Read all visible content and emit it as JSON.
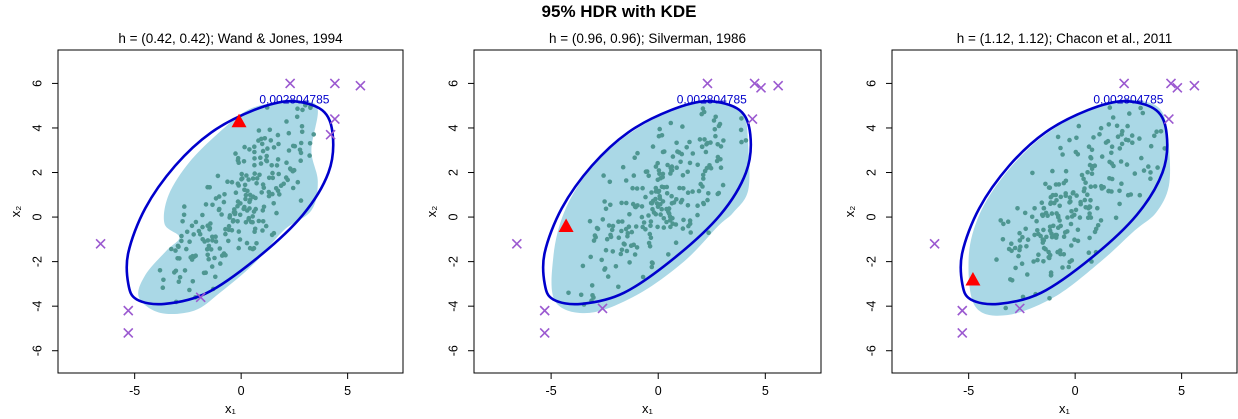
{
  "figure": {
    "title": "95% HDR with KDE"
  },
  "colors": {
    "hdr_fill": "#aad8e6",
    "contour": "#0000cc",
    "points": "#4e9691",
    "outliers": "#9b59d0",
    "mode": "#ff0000",
    "axes": "#000000"
  },
  "chart_data": [
    {
      "type": "scatter",
      "title": "h = (0.42, 0.42); Wand & Jones, 1994",
      "xlabel": "x₁",
      "ylabel": "x₂",
      "xlim": [
        -8.6,
        7.6
      ],
      "ylim": [
        -7.0,
        7.5
      ],
      "xticks": [
        -5,
        0,
        5
      ],
      "yticks": [
        -6,
        -4,
        -2,
        0,
        2,
        4,
        6
      ],
      "contour_label": "0.002804785",
      "mode_point": [
        -0.1,
        4.3
      ],
      "hdr_region": [
        [
          -3.8,
          -4.3
        ],
        [
          -2.2,
          -4.2
        ],
        [
          -1.0,
          -3.4
        ],
        [
          0.6,
          -2.1
        ],
        [
          2.0,
          -0.6
        ],
        [
          3.3,
          0.3
        ],
        [
          3.6,
          1.6
        ],
        [
          3.3,
          3.0
        ],
        [
          3.6,
          4.8
        ],
        [
          3.0,
          5.2
        ],
        [
          1.4,
          5.1
        ],
        [
          0.3,
          4.8
        ],
        [
          -0.8,
          4.0
        ],
        [
          -2.4,
          2.5
        ],
        [
          -3.4,
          1.0
        ],
        [
          -3.6,
          -0.3
        ],
        [
          -2.9,
          -0.9
        ],
        [
          -3.5,
          -1.5
        ],
        [
          -4.5,
          -2.6
        ],
        [
          -4.8,
          -3.6
        ]
      ],
      "hdr_contour": [
        [
          -4.9,
          -3.7
        ],
        [
          -3.6,
          -3.9
        ],
        [
          -1.6,
          -3.4
        ],
        [
          0.8,
          -1.8
        ],
        [
          2.9,
          0.1
        ],
        [
          4.1,
          2.0
        ],
        [
          4.3,
          3.7
        ],
        [
          3.8,
          4.8
        ],
        [
          2.3,
          5.2
        ],
        [
          0.6,
          4.8
        ],
        [
          -1.4,
          3.8
        ],
        [
          -3.1,
          2.3
        ],
        [
          -4.5,
          0.4
        ],
        [
          -5.3,
          -1.6
        ],
        [
          -5.3,
          -3.0
        ]
      ],
      "outliers": [
        [
          -6.6,
          -1.2
        ],
        [
          -5.3,
          -4.2
        ],
        [
          -5.3,
          -5.2
        ],
        [
          -1.9,
          -3.6
        ],
        [
          2.3,
          6.0
        ],
        [
          4.4,
          6.0
        ],
        [
          5.6,
          5.9
        ],
        [
          4.4,
          4.4
        ],
        [
          4.2,
          3.7
        ]
      ]
    },
    {
      "type": "scatter",
      "title": "h = (0.96, 0.96); Silverman, 1986",
      "xlabel": "x₁",
      "ylabel": "x₂",
      "xlim": [
        -8.6,
        7.6
      ],
      "ylim": [
        -7.0,
        7.5
      ],
      "xticks": [
        -5,
        0,
        5
      ],
      "yticks": [
        -6,
        -4,
        -2,
        0,
        2,
        4,
        6
      ],
      "contour_label": "0.002804785",
      "mode_point": [
        -4.3,
        -0.4
      ],
      "hdr_region": [
        [
          -4.8,
          -3.8
        ],
        [
          -3.2,
          -4.3
        ],
        [
          -1.0,
          -3.5
        ],
        [
          1.2,
          -2.0
        ],
        [
          2.8,
          -0.4
        ],
        [
          3.5,
          0.2
        ],
        [
          4.2,
          1.2
        ],
        [
          4.2,
          3.2
        ],
        [
          4.0,
          4.6
        ],
        [
          3.2,
          5.1
        ],
        [
          1.8,
          5.1
        ],
        [
          0.2,
          4.6
        ],
        [
          -1.7,
          3.5
        ],
        [
          -3.3,
          2.0
        ],
        [
          -4.4,
          0.2
        ],
        [
          -4.9,
          -1.8
        ]
      ],
      "hdr_contour": [
        [
          -4.9,
          -3.7
        ],
        [
          -3.6,
          -3.9
        ],
        [
          -1.6,
          -3.4
        ],
        [
          0.8,
          -1.8
        ],
        [
          2.9,
          0.1
        ],
        [
          4.1,
          2.0
        ],
        [
          4.3,
          3.7
        ],
        [
          3.8,
          4.8
        ],
        [
          2.3,
          5.2
        ],
        [
          0.6,
          4.8
        ],
        [
          -1.4,
          3.8
        ],
        [
          -3.1,
          2.3
        ],
        [
          -4.5,
          0.4
        ],
        [
          -5.3,
          -1.6
        ],
        [
          -5.3,
          -3.0
        ]
      ],
      "outliers": [
        [
          -6.6,
          -1.2
        ],
        [
          -5.3,
          -4.2
        ],
        [
          -5.3,
          -5.2
        ],
        [
          -2.6,
          -4.1
        ],
        [
          2.3,
          6.0
        ],
        [
          4.5,
          6.0
        ],
        [
          4.8,
          5.8
        ],
        [
          5.6,
          5.9
        ],
        [
          4.4,
          4.4
        ]
      ]
    },
    {
      "type": "scatter",
      "title": "h = (1.12, 1.12); Chacon et al., 2011",
      "xlabel": "x₁",
      "ylabel": "x₂",
      "xlim": [
        -8.6,
        7.6
      ],
      "ylim": [
        -7.0,
        7.5
      ],
      "xticks": [
        -5,
        0,
        5
      ],
      "yticks": [
        -6,
        -4,
        -2,
        0,
        2,
        4,
        6
      ],
      "contour_label": "0.002804785",
      "mode_point": [
        -4.8,
        -2.8
      ],
      "hdr_region": [
        [
          -4.7,
          -4.0
        ],
        [
          -3.2,
          -4.4
        ],
        [
          -1.0,
          -3.6
        ],
        [
          1.2,
          -2.0
        ],
        [
          2.8,
          -0.6
        ],
        [
          3.8,
          0.2
        ],
        [
          4.4,
          1.4
        ],
        [
          4.4,
          3.2
        ],
        [
          4.1,
          4.7
        ],
        [
          3.2,
          5.2
        ],
        [
          1.7,
          5.2
        ],
        [
          0.1,
          4.6
        ],
        [
          -1.8,
          3.4
        ],
        [
          -3.4,
          1.8
        ],
        [
          -4.5,
          0.1
        ],
        [
          -5.0,
          -1.8
        ]
      ],
      "hdr_contour": [
        [
          -4.9,
          -3.7
        ],
        [
          -3.6,
          -3.9
        ],
        [
          -1.6,
          -3.4
        ],
        [
          0.8,
          -1.8
        ],
        [
          2.9,
          0.1
        ],
        [
          4.1,
          2.0
        ],
        [
          4.3,
          3.7
        ],
        [
          3.8,
          4.8
        ],
        [
          2.3,
          5.2
        ],
        [
          0.6,
          4.8
        ],
        [
          -1.4,
          3.8
        ],
        [
          -3.1,
          2.3
        ],
        [
          -4.5,
          0.4
        ],
        [
          -5.3,
          -1.6
        ],
        [
          -5.3,
          -3.0
        ]
      ],
      "outliers": [
        [
          -6.6,
          -1.2
        ],
        [
          -5.3,
          -4.2
        ],
        [
          -5.3,
          -5.2
        ],
        [
          -2.6,
          -4.1
        ],
        [
          2.3,
          6.0
        ],
        [
          4.5,
          6.0
        ],
        [
          4.8,
          5.8
        ],
        [
          5.6,
          5.9
        ],
        [
          4.4,
          4.4
        ]
      ]
    }
  ]
}
